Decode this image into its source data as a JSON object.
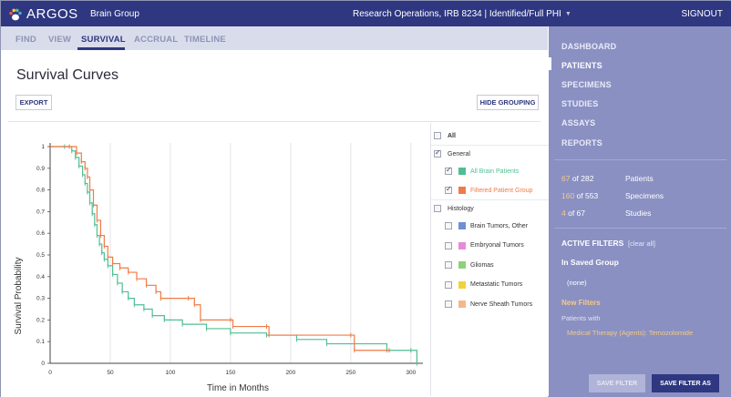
{
  "topbar": {
    "app_name": "ARGOS",
    "group": "Brain Group",
    "context": "Research Operations, IRB 8234 | Identified/Full PHI",
    "signout": "SIGNOUT"
  },
  "tabs": [
    {
      "label": "FIND",
      "active": false
    },
    {
      "label": "VIEW",
      "active": false
    },
    {
      "label": "SURVIVAL",
      "active": true
    },
    {
      "label": "ACCRUAL",
      "active": false
    },
    {
      "label": "TIMELINE",
      "active": false
    }
  ],
  "main": {
    "title": "Survival Curves",
    "export_label": "EXPORT",
    "hide_grouping_label": "HIDE GROUPING"
  },
  "legend": {
    "all_label": "All",
    "general_label": "General",
    "all_brain_label": "All Brain Patients",
    "filtered_label": "Filtered Patient Group",
    "histology_label": "Histology",
    "histology_items": [
      {
        "label": "Brain Tumors, Other",
        "color": "#6f8fd6"
      },
      {
        "label": "Embryonal Tumors",
        "color": "#e98ad6"
      },
      {
        "label": "Gliomas",
        "color": "#8fd17a"
      },
      {
        "label": "Metastatic Tumors",
        "color": "#f2d23a"
      },
      {
        "label": "Nerve Sheath Tumors",
        "color": "#f3b98a"
      }
    ],
    "colors": {
      "all_brain": "#4fbf93",
      "filtered": "#f07b46"
    }
  },
  "sidebar": {
    "nav": [
      {
        "label": "DASHBOARD",
        "active": false
      },
      {
        "label": "PATIENTS",
        "active": true
      },
      {
        "label": "SPECIMENS",
        "active": false
      },
      {
        "label": "STUDIES",
        "active": false
      },
      {
        "label": "ASSAYS",
        "active": false
      },
      {
        "label": "REPORTS",
        "active": false
      }
    ],
    "stats": [
      {
        "num": "67",
        "of": " of 282",
        "label": "Patients"
      },
      {
        "num": "160",
        "of": " of 553",
        "label": "Specimens"
      },
      {
        "num": "4",
        "of": " of 67",
        "label": "Studies"
      }
    ],
    "active_filters": "ACTIVE FILTERS",
    "clear_all": "[clear all]",
    "in_saved_group": "In Saved Group",
    "saved_none": "(none)",
    "new_filters": "New Filters",
    "patients_with": "Patients with",
    "filter_value": "Medical Therapy (Agents): Temozolomide",
    "save_filter": "SAVE FILTER",
    "save_filter_as": "SAVE FILTER AS"
  },
  "chart_data": {
    "type": "line",
    "xlabel": "Time in Months",
    "ylabel": "Survival Probability",
    "xlim": [
      0,
      310
    ],
    "ylim": [
      0,
      1
    ],
    "x_ticks": [
      "0",
      "50",
      "100",
      "150",
      "200",
      "250",
      "300"
    ],
    "y_ticks": [
      "0",
      "0.1",
      "0.2",
      "0.3",
      "0.4",
      "0.5",
      "0.6",
      "0.7",
      "0.8",
      "0.9",
      "1"
    ],
    "grid": "vertical",
    "series": [
      {
        "name": "All Brain Patients",
        "color": "#4fbf93",
        "points": [
          [
            0,
            1
          ],
          [
            12,
            1
          ],
          [
            18,
            0.98
          ],
          [
            21,
            0.95
          ],
          [
            24,
            0.91
          ],
          [
            27,
            0.87
          ],
          [
            29,
            0.83
          ],
          [
            31,
            0.79
          ],
          [
            33,
            0.74
          ],
          [
            35,
            0.69
          ],
          [
            37,
            0.64
          ],
          [
            39,
            0.59
          ],
          [
            41,
            0.55
          ],
          [
            43,
            0.51
          ],
          [
            45,
            0.48
          ],
          [
            48,
            0.45
          ],
          [
            52,
            0.41
          ],
          [
            56,
            0.37
          ],
          [
            60,
            0.33
          ],
          [
            65,
            0.3
          ],
          [
            70,
            0.27
          ],
          [
            78,
            0.25
          ],
          [
            85,
            0.22
          ],
          [
            95,
            0.2
          ],
          [
            110,
            0.18
          ],
          [
            130,
            0.16
          ],
          [
            150,
            0.14
          ],
          [
            180,
            0.13
          ],
          [
            205,
            0.11
          ],
          [
            230,
            0.09
          ],
          [
            280,
            0.06
          ],
          [
            300,
            0.06
          ],
          [
            305,
            0
          ]
        ]
      },
      {
        "name": "Filtered Patient Group",
        "color": "#f07b46",
        "points": [
          [
            0,
            1
          ],
          [
            16,
            1
          ],
          [
            22,
            0.97
          ],
          [
            26,
            0.93
          ],
          [
            29,
            0.9
          ],
          [
            31,
            0.86
          ],
          [
            33,
            0.8
          ],
          [
            36,
            0.73
          ],
          [
            39,
            0.66
          ],
          [
            42,
            0.59
          ],
          [
            45,
            0.54
          ],
          [
            48,
            0.49
          ],
          [
            52,
            0.46
          ],
          [
            58,
            0.44
          ],
          [
            65,
            0.42
          ],
          [
            72,
            0.39
          ],
          [
            80,
            0.36
          ],
          [
            88,
            0.33
          ],
          [
            92,
            0.3
          ],
          [
            115,
            0.3
          ],
          [
            120,
            0.27
          ],
          [
            125,
            0.2
          ],
          [
            150,
            0.2
          ],
          [
            152,
            0.17
          ],
          [
            180,
            0.17
          ],
          [
            182,
            0.13
          ],
          [
            250,
            0.13
          ],
          [
            253,
            0.06
          ],
          [
            282,
            0.06
          ]
        ]
      }
    ]
  }
}
